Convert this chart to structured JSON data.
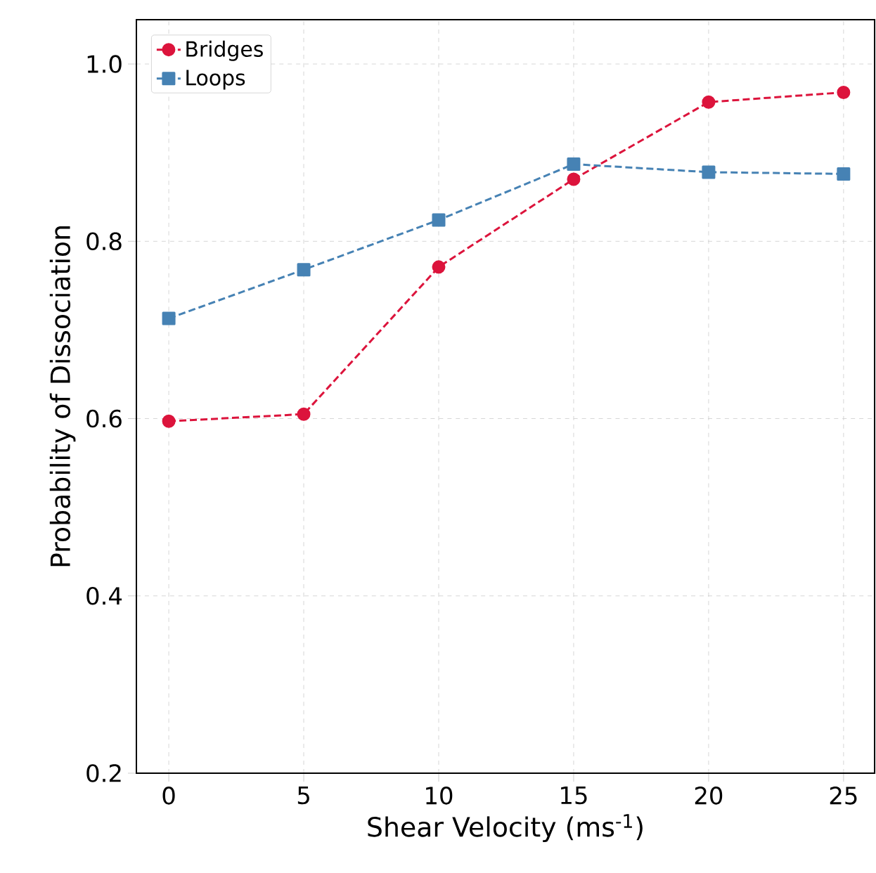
{
  "chart_data": {
    "type": "line",
    "xlabel": "Shear Velocity (ms$^{-1}$)",
    "ylabel": "Probability of Dissociation",
    "x": [
      0,
      5,
      10,
      15,
      20,
      25
    ],
    "series": [
      {
        "name": "Bridges",
        "color": "#dc143c",
        "marker": "circle",
        "values": [
          0.597,
          0.605,
          0.771,
          0.87,
          0.957,
          0.968
        ]
      },
      {
        "name": "Loops",
        "color": "#4682b4",
        "marker": "square",
        "values": [
          0.713,
          0.768,
          0.824,
          0.887,
          0.878,
          0.876
        ]
      }
    ],
    "xlim": [
      -1.2,
      26.15
    ],
    "ylim": [
      0.2,
      1.05
    ],
    "xticks": [
      0,
      5,
      10,
      15,
      20,
      25
    ],
    "yticks": [
      0.2,
      0.4,
      0.6,
      0.8,
      {
        "value": 1,
        "label": "1.0"
      }
    ],
    "grid": true,
    "legend": "top left",
    "line_style": "dashed"
  }
}
